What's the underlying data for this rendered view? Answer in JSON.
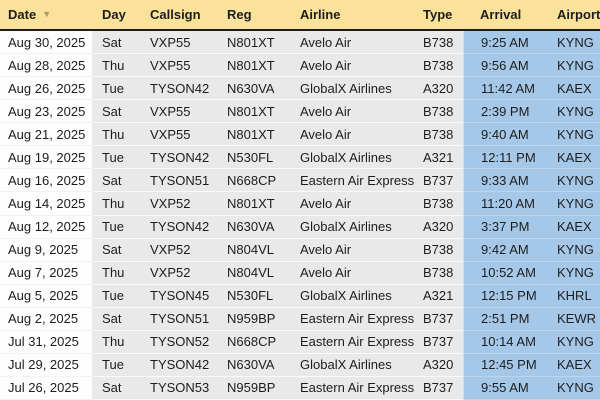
{
  "colors": {
    "header_bg": "#fbe29a",
    "header_border": "#1c1c1c",
    "row_bg": "#e9e9e9",
    "date_col_bg": "#fdfdfd",
    "highlight_col_bg": "#a6c8e8",
    "text": "#1d1d1d",
    "sort_icon": "#a79a66"
  },
  "table": {
    "header": {
      "date": "Date",
      "day": "Day",
      "callsign": "Callsign",
      "reg": "Reg",
      "airline": "Airline",
      "type": "Type",
      "arrival": "Arrival",
      "airport": "Airport",
      "sort_column": "Date",
      "sort_direction": "descending",
      "sort_glyph": "▼"
    },
    "rows": [
      {
        "date": "Aug 30, 2025",
        "day": "Sat",
        "callsign": "VXP55",
        "reg": "N801XT",
        "airline": "Avelo Air",
        "type": "B738",
        "arrival": "9:25 AM",
        "airport": "KYNG"
      },
      {
        "date": "Aug 28, 2025",
        "day": "Thu",
        "callsign": "VXP55",
        "reg": "N801XT",
        "airline": "Avelo Air",
        "type": "B738",
        "arrival": "9:56 AM",
        "airport": "KYNG"
      },
      {
        "date": "Aug 26, 2025",
        "day": "Tue",
        "callsign": "TYSON42",
        "reg": "N630VA",
        "airline": "GlobalX Airlines",
        "type": "A320",
        "arrival": "11:42 AM",
        "airport": "KAEX"
      },
      {
        "date": "Aug 23, 2025",
        "day": "Sat",
        "callsign": "VXP55",
        "reg": "N801XT",
        "airline": "Avelo Air",
        "type": "B738",
        "arrival": "2:39 PM",
        "airport": "KYNG"
      },
      {
        "date": "Aug 21, 2025",
        "day": "Thu",
        "callsign": "VXP55",
        "reg": "N801XT",
        "airline": "Avelo Air",
        "type": "B738",
        "arrival": "9:40 AM",
        "airport": "KYNG"
      },
      {
        "date": "Aug 19, 2025",
        "day": "Tue",
        "callsign": "TYSON42",
        "reg": "N530FL",
        "airline": "GlobalX Airlines",
        "type": "A321",
        "arrival": "12:11 PM",
        "airport": "KAEX"
      },
      {
        "date": "Aug 16, 2025",
        "day": "Sat",
        "callsign": "TYSON51",
        "reg": "N668CP",
        "airline": "Eastern Air Express",
        "type": "B737",
        "arrival": "9:33 AM",
        "airport": "KYNG"
      },
      {
        "date": "Aug 14, 2025",
        "day": "Thu",
        "callsign": "VXP52",
        "reg": "N801XT",
        "airline": "Avelo Air",
        "type": "B738",
        "arrival": "11:20 AM",
        "airport": "KYNG"
      },
      {
        "date": "Aug 12, 2025",
        "day": "Tue",
        "callsign": "TYSON42",
        "reg": "N630VA",
        "airline": "GlobalX Airlines",
        "type": "A320",
        "arrival": "3:37 PM",
        "airport": "KAEX"
      },
      {
        "date": "Aug 9, 2025",
        "day": "Sat",
        "callsign": "VXP52",
        "reg": "N804VL",
        "airline": "Avelo Air",
        "type": "B738",
        "arrival": "9:42 AM",
        "airport": "KYNG"
      },
      {
        "date": "Aug 7, 2025",
        "day": "Thu",
        "callsign": "VXP52",
        "reg": "N804VL",
        "airline": "Avelo Air",
        "type": "B738",
        "arrival": "10:52 AM",
        "airport": "KYNG"
      },
      {
        "date": "Aug 5, 2025",
        "day": "Tue",
        "callsign": "TYSON45",
        "reg": "N530FL",
        "airline": "GlobalX Airlines",
        "type": "A321",
        "arrival": "12:15 PM",
        "airport": "KHRL"
      },
      {
        "date": "Aug 2, 2025",
        "day": "Sat",
        "callsign": "TYSON51",
        "reg": "N959BP",
        "airline": "Eastern Air Express",
        "type": "B737",
        "arrival": "2:51 PM",
        "airport": "KEWR"
      },
      {
        "date": "Jul 31, 2025",
        "day": "Thu",
        "callsign": "TYSON52",
        "reg": "N668CP",
        "airline": "Eastern Air Express",
        "type": "B737",
        "arrival": "10:14 AM",
        "airport": "KYNG"
      },
      {
        "date": "Jul 29, 2025",
        "day": "Tue",
        "callsign": "TYSON42",
        "reg": "N630VA",
        "airline": "GlobalX Airlines",
        "type": "A320",
        "arrival": "12:45 PM",
        "airport": "KAEX"
      },
      {
        "date": "Jul 26, 2025",
        "day": "Sat",
        "callsign": "TYSON53",
        "reg": "N959BP",
        "airline": "Eastern Air Express",
        "type": "B737",
        "arrival": "9:55 AM",
        "airport": "KYNG"
      }
    ]
  }
}
